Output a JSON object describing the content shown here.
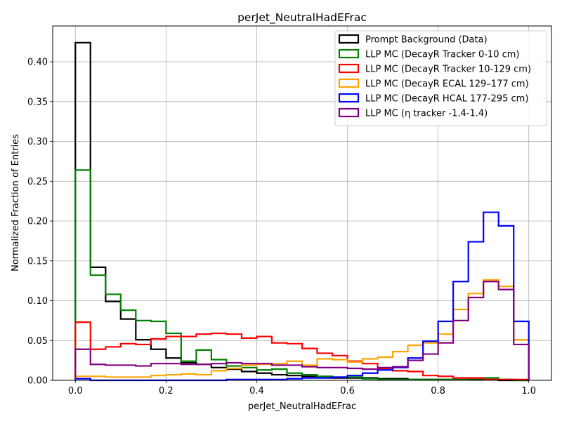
{
  "chart_data": {
    "type": "histogram-step",
    "title": "perJet_NeutralHadEFrac",
    "xlabel": "perJet_NeutralHadEFrac",
    "ylabel": "Normalized Fraction of Entries",
    "xlim": [
      -0.05,
      1.05
    ],
    "ylim": [
      0,
      0.445
    ],
    "xticks": [
      0.0,
      0.2,
      0.4,
      0.6,
      0.8,
      1.0
    ],
    "xtick_labels": [
      "0.0",
      "0.2",
      "0.4",
      "0.6",
      "0.8",
      "1.0"
    ],
    "yticks": [
      0.0,
      0.05,
      0.1,
      0.15,
      0.2,
      0.25,
      0.3,
      0.35,
      0.4
    ],
    "ytick_labels": [
      "0.00",
      "0.05",
      "0.10",
      "0.15",
      "0.20",
      "0.25",
      "0.30",
      "0.35",
      "0.40"
    ],
    "grid": true,
    "legend_position": "top-right",
    "bin_edges": [
      0.0,
      0.0333,
      0.0667,
      0.1,
      0.1333,
      0.1667,
      0.2,
      0.2333,
      0.2667,
      0.3,
      0.3333,
      0.3667,
      0.4,
      0.4333,
      0.4667,
      0.5,
      0.5333,
      0.5667,
      0.6,
      0.6333,
      0.6667,
      0.7,
      0.7333,
      0.7667,
      0.8,
      0.8333,
      0.8667,
      0.9,
      0.9333,
      0.9667,
      1.0
    ],
    "series": [
      {
        "name": "Prompt Background (Data)",
        "color": "#000000",
        "values": [
          0.424,
          0.142,
          0.099,
          0.077,
          0.051,
          0.039,
          0.028,
          0.022,
          0.02,
          0.016,
          0.014,
          0.011,
          0.009,
          0.007,
          0.006,
          0.005,
          0.004,
          0.003,
          0.003,
          0.003,
          0.002,
          0.002,
          0.001,
          0.001,
          0.001,
          0.001,
          0.001,
          0.001,
          0.0,
          0.0
        ]
      },
      {
        "name": "LLP MC (DecayR Tracker 0-10 cm)",
        "color": "#008000",
        "values": [
          0.264,
          0.132,
          0.108,
          0.088,
          0.075,
          0.074,
          0.059,
          0.024,
          0.038,
          0.026,
          0.018,
          0.016,
          0.013,
          0.014,
          0.009,
          0.007,
          0.005,
          0.004,
          0.004,
          0.002,
          0.001,
          0.001,
          0.001,
          0.001,
          0.001,
          0.001,
          0.002,
          0.003,
          0.001,
          0.0
        ]
      },
      {
        "name": "LLP MC (DecayR Tracker 10-129 cm)",
        "color": "#ff0000",
        "values": [
          0.073,
          0.039,
          0.042,
          0.046,
          0.045,
          0.052,
          0.055,
          0.055,
          0.058,
          0.059,
          0.058,
          0.053,
          0.055,
          0.047,
          0.046,
          0.04,
          0.034,
          0.031,
          0.024,
          0.021,
          0.015,
          0.012,
          0.011,
          0.006,
          0.005,
          0.003,
          0.003,
          0.001,
          0.001,
          0.001
        ]
      },
      {
        "name": "LLP MC (DecayR ECAL 129–177 cm)",
        "color": "#ffa500",
        "values": [
          0.005,
          0.005,
          0.004,
          0.004,
          0.004,
          0.006,
          0.007,
          0.008,
          0.007,
          0.012,
          0.015,
          0.019,
          0.02,
          0.021,
          0.024,
          0.019,
          0.027,
          0.026,
          0.023,
          0.027,
          0.029,
          0.036,
          0.044,
          0.047,
          0.058,
          0.089,
          0.109,
          0.126,
          0.118,
          0.051
        ]
      },
      {
        "name": "LLP MC (DecayR HCAL 177-295 cm)",
        "color": "#0000ff",
        "values": [
          0.002,
          0.0,
          0.0,
          0.0,
          0.0,
          0.0,
          0.0,
          0.0,
          0.0,
          0.0,
          0.001,
          0.001,
          0.001,
          0.001,
          0.002,
          0.003,
          0.003,
          0.004,
          0.006,
          0.009,
          0.013,
          0.016,
          0.028,
          0.049,
          0.074,
          0.124,
          0.174,
          0.211,
          0.194,
          0.074
        ]
      },
      {
        "name": "LLP MC (η tracker -1.4-1.4)",
        "color": "#800080",
        "values": [
          0.039,
          0.02,
          0.019,
          0.019,
          0.018,
          0.021,
          0.021,
          0.02,
          0.02,
          0.021,
          0.022,
          0.021,
          0.021,
          0.019,
          0.019,
          0.017,
          0.016,
          0.016,
          0.015,
          0.014,
          0.016,
          0.017,
          0.025,
          0.033,
          0.047,
          0.075,
          0.104,
          0.124,
          0.114,
          0.045
        ]
      }
    ]
  }
}
